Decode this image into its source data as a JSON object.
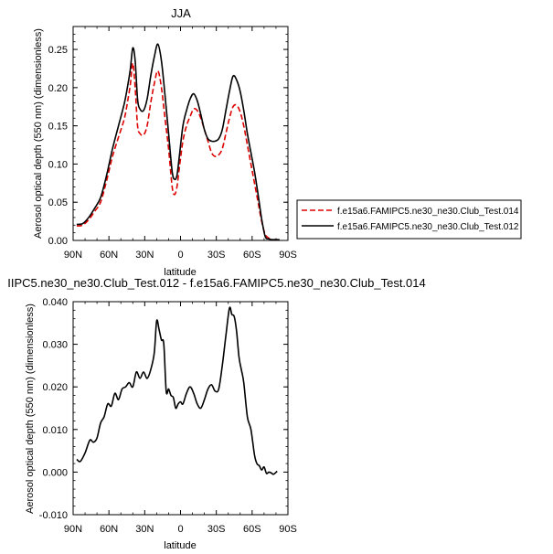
{
  "chart_data": [
    {
      "type": "line",
      "title": "JJA",
      "xlabel": "latitude",
      "ylabel": "Aerosol optical depth (550 nm) (dimensionless)",
      "x_ticks": [
        "90N",
        "60N",
        "30N",
        "0",
        "30S",
        "60S",
        "90S"
      ],
      "x_tick_values": [
        90,
        60,
        30,
        0,
        -30,
        -60,
        -90
      ],
      "xlim": [
        90,
        -90
      ],
      "y_ticks": [
        "0.00",
        "0.05",
        "0.10",
        "0.15",
        "0.20",
        "0.25"
      ],
      "y_tick_values": [
        0,
        0.05,
        0.1,
        0.15,
        0.2,
        0.25
      ],
      "ylim": [
        0,
        0.28
      ],
      "legend_position": "right",
      "series": [
        {
          "name": "f.e15a6.FAMIPC5.ne30_ne30.Club_Test.014",
          "color": "#dd0000",
          "dash": "dashed",
          "x": [
            87,
            82,
            77,
            72,
            67,
            62,
            57,
            52,
            47,
            44,
            42,
            40,
            38,
            36,
            34,
            31,
            28,
            25,
            22,
            19,
            16,
            13,
            10,
            7,
            5,
            3,
            1,
            -2,
            -5,
            -8,
            -11,
            -14,
            -17,
            -20,
            -23,
            -26,
            -29,
            -32,
            -35,
            -38,
            -41,
            -44,
            -47,
            -50,
            -53,
            -56,
            -59,
            -62,
            -65,
            -68,
            -71,
            -74,
            -77,
            -80,
            -83
          ],
          "y": [
            0.019,
            0.02,
            0.027,
            0.038,
            0.05,
            0.078,
            0.11,
            0.135,
            0.16,
            0.185,
            0.205,
            0.232,
            0.2,
            0.15,
            0.14,
            0.138,
            0.15,
            0.18,
            0.205,
            0.222,
            0.2,
            0.16,
            0.12,
            0.07,
            0.06,
            0.07,
            0.095,
            0.13,
            0.15,
            0.162,
            0.172,
            0.17,
            0.16,
            0.145,
            0.13,
            0.115,
            0.11,
            0.112,
            0.12,
            0.14,
            0.16,
            0.175,
            0.177,
            0.168,
            0.15,
            0.125,
            0.1,
            0.075,
            0.05,
            0.025,
            0.008,
            0.003,
            0.001,
            0.001,
            0.001
          ]
        },
        {
          "name": "f.e15a6.FAMIPC5.ne30_ne30.Club_Test.012",
          "color": "#000000",
          "dash": "solid",
          "x": [
            87,
            82,
            77,
            72,
            67,
            62,
            57,
            52,
            47,
            44,
            42,
            40,
            38,
            36,
            34,
            31,
            28,
            25,
            22,
            19,
            16,
            13,
            10,
            7,
            5,
            3,
            1,
            -2,
            -5,
            -8,
            -11,
            -14,
            -17,
            -20,
            -23,
            -26,
            -29,
            -32,
            -35,
            -38,
            -41,
            -44,
            -47,
            -50,
            -53,
            -56,
            -59,
            -62,
            -65,
            -68,
            -71,
            -74,
            -77,
            -80,
            -83
          ],
          "y": [
            0.021,
            0.022,
            0.03,
            0.042,
            0.056,
            0.085,
            0.12,
            0.15,
            0.18,
            0.205,
            0.225,
            0.252,
            0.235,
            0.185,
            0.172,
            0.17,
            0.185,
            0.215,
            0.24,
            0.257,
            0.235,
            0.19,
            0.14,
            0.09,
            0.08,
            0.085,
            0.11,
            0.15,
            0.17,
            0.185,
            0.192,
            0.183,
            0.165,
            0.145,
            0.133,
            0.13,
            0.13,
            0.133,
            0.145,
            0.17,
            0.195,
            0.215,
            0.21,
            0.195,
            0.17,
            0.14,
            0.115,
            0.09,
            0.06,
            0.028,
            0.005,
            0.002,
            0.001,
            0.001,
            0.001
          ]
        }
      ]
    },
    {
      "type": "line",
      "title": "IIPC5.ne30_ne30.Club_Test.012 - f.e15a6.FAMIPC5.ne30_ne30.Club_Test.014",
      "xlabel": "latitude",
      "ylabel": "Aerosol optical depth (550 nm) (dimensionless)",
      "x_ticks": [
        "90N",
        "60N",
        "30N",
        "0",
        "30S",
        "60S",
        "90S"
      ],
      "x_tick_values": [
        90,
        60,
        30,
        0,
        -30,
        -60,
        -90
      ],
      "xlim": [
        90,
        -90
      ],
      "y_ticks": [
        "-0.010",
        "0.000",
        "0.010",
        "0.020",
        "0.030",
        "0.040"
      ],
      "y_tick_values": [
        -0.01,
        0,
        0.01,
        0.02,
        0.03,
        0.04
      ],
      "ylim": [
        -0.01,
        0.04
      ],
      "series": [
        {
          "color": "#000000",
          "dash": "solid",
          "x": [
            87,
            84,
            80,
            76,
            73,
            70,
            67,
            64,
            61,
            58,
            55,
            52,
            49,
            46,
            43,
            40,
            37,
            34,
            31,
            28,
            25,
            22,
            20,
            18,
            16,
            14,
            12,
            10,
            8,
            6,
            4,
            2,
            0,
            -2,
            -5,
            -8,
            -11,
            -14,
            -17,
            -20,
            -23,
            -26,
            -29,
            -32,
            -35,
            -38,
            -41,
            -43,
            -45,
            -47,
            -49,
            -51,
            -53,
            -56,
            -59,
            -62,
            -64,
            -66,
            -68,
            -70,
            -72,
            -74,
            -76,
            -78,
            -81
          ],
          "y": [
            0.003,
            0.0025,
            0.0045,
            0.0075,
            0.007,
            0.008,
            0.0115,
            0.013,
            0.016,
            0.0155,
            0.0185,
            0.017,
            0.0195,
            0.02,
            0.021,
            0.02,
            0.0235,
            0.022,
            0.0235,
            0.022,
            0.024,
            0.028,
            0.0355,
            0.0335,
            0.031,
            0.03,
            0.019,
            0.0195,
            0.018,
            0.0175,
            0.015,
            0.016,
            0.0165,
            0.016,
            0.0185,
            0.02,
            0.0185,
            0.016,
            0.015,
            0.017,
            0.0195,
            0.0205,
            0.019,
            0.0195,
            0.025,
            0.032,
            0.0385,
            0.037,
            0.0365,
            0.033,
            0.027,
            0.024,
            0.021,
            0.013,
            0.01,
            0.004,
            0.002,
            0.0015,
            0.0005,
            0.0012,
            -0.0003,
            0.0,
            -0.0002,
            -0.0005,
            0.0002
          ]
        }
      ]
    }
  ]
}
